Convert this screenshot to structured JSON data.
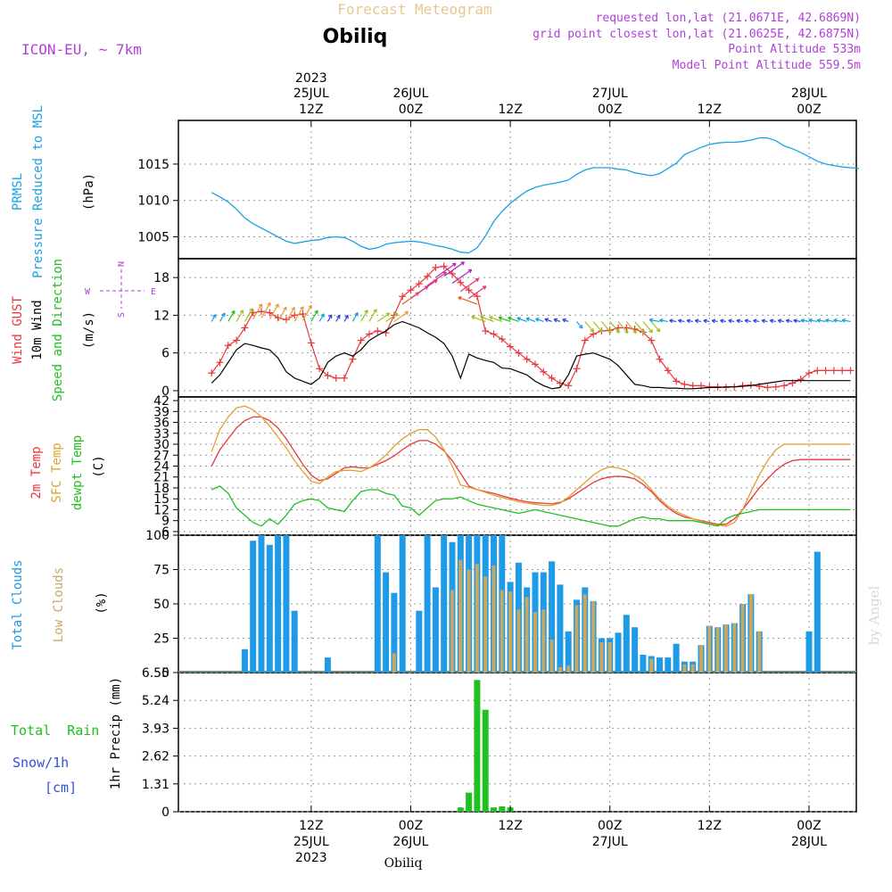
{
  "header": {
    "product": "Forecast Meteogram",
    "location": "Obiliq",
    "model": "ICON-EU, ~ 7km",
    "requested": "requested lon,lat (21.0671E, 42.6869N)",
    "gridpoint": "grid point closest lon,lat (21.0625E, 42.6875N)",
    "point_alt": "Point Altitude 533m",
    "model_alt": "Model Point Altitude 559.5m",
    "bottom_location": "Obiliq",
    "watermark": "by Angel"
  },
  "time_axis": {
    "top": [
      {
        "line1": "2023",
        "line2": "25JUL",
        "line3": "12Z"
      },
      {
        "line1": "",
        "line2": "26JUL",
        "line3": "00Z"
      },
      {
        "line1": "",
        "line2": "",
        "line3": "12Z"
      },
      {
        "line1": "",
        "line2": "27JUL",
        "line3": "00Z"
      },
      {
        "line1": "",
        "line2": "",
        "line3": "12Z"
      },
      {
        "line1": "",
        "line2": "28JUL",
        "line3": "00Z"
      }
    ],
    "bottom": [
      {
        "line1": "12Z",
        "line2": "25JUL",
        "line3": "2023"
      },
      {
        "line1": "00Z",
        "line2": "26JUL",
        "line3": ""
      },
      {
        "line1": "12Z",
        "line2": "",
        "line3": ""
      },
      {
        "line1": "00Z",
        "line2": "27JUL",
        "line3": ""
      },
      {
        "line1": "12Z",
        "line2": "",
        "line3": ""
      },
      {
        "line1": "00Z",
        "line2": "28JUL",
        "line3": ""
      }
    ],
    "hour_ticks": [
      12,
      24,
      36,
      48,
      60,
      72
    ]
  },
  "panel_labels": {
    "pressure": {
      "l1": "PRMSL",
      "l2": "Pressure Reduced to MSL",
      "unit": "(hPa)"
    },
    "wind": {
      "l1": "Wind GUST",
      "l2": "10m Wind",
      "l3": "Speed and Direction",
      "unit": "(m/s)",
      "compass_ns": "N",
      "compass_s": "S",
      "compass_w": "W",
      "compass_e": "E"
    },
    "temp": {
      "l1": "2m Temp",
      "l2": "SFC Temp",
      "l3": "dewpt Temp",
      "unit": "(C)"
    },
    "cloud": {
      "l1": "Total Clouds",
      "l2": "Low Clouds",
      "unit": "(%)"
    },
    "precip": {
      "l1": "Total  Rain",
      "l2": "Snow/1h",
      "l3": "[cm]",
      "unit": "1hr Precip (mm)"
    }
  },
  "colors": {
    "pressure": "#1aa0e6",
    "gust": "#e8383c",
    "wind": "#000000",
    "temp2m": "#e8383c",
    "sfc": "#e0a030",
    "dew": "#20c020",
    "total_cloud": "#1e9ae6",
    "low_cloud": "#c8a860",
    "rain": "#20c020",
    "label_purple": "#b040d8",
    "label_gold": "#e8b860"
  },
  "chart_data": [
    {
      "type": "line",
      "name": "pressure",
      "ylim": [
        1002,
        1021
      ],
      "yticks": [
        1005,
        1010,
        1015
      ],
      "x_hours": [
        0,
        1,
        2,
        3,
        4,
        5,
        6,
        7,
        8,
        9,
        10,
        11,
        12,
        13,
        14,
        15,
        16,
        17,
        18,
        19,
        20,
        21,
        22,
        23,
        24,
        25,
        26,
        27,
        28,
        29,
        30,
        31,
        32,
        33,
        34,
        35,
        36,
        37,
        38,
        39,
        40,
        41,
        42,
        43,
        44,
        45,
        46,
        47,
        48,
        49,
        50,
        51,
        52,
        53,
        54,
        55,
        56,
        57,
        58,
        59,
        60,
        61,
        62,
        63,
        64,
        65,
        66,
        67,
        68,
        69,
        70,
        71,
        72,
        73,
        74,
        75,
        76,
        77,
        78
      ],
      "series": [
        {
          "values": [
            1011.1,
            1010.5,
            1009.8,
            1008.8,
            1007.6,
            1006.8,
            1006.2,
            1005.6,
            1005.0,
            1004.4,
            1004.1,
            1004.3,
            1004.5,
            1004.6,
            1004.9,
            1005.0,
            1004.9,
            1004.4,
            1003.7,
            1003.3,
            1003.5,
            1004.0,
            1004.2,
            1004.3,
            1004.4,
            1004.3,
            1004.1,
            1003.8,
            1003.6,
            1003.3,
            1002.9,
            1002.8,
            1003.5,
            1005.1,
            1007.1,
            1008.5,
            1009.6,
            1010.5,
            1011.3,
            1011.8,
            1012.1,
            1012.3,
            1012.5,
            1012.8,
            1013.6,
            1014.2,
            1014.5,
            1014.5,
            1014.5,
            1014.3,
            1014.2,
            1013.8,
            1013.6,
            1013.4,
            1013.7,
            1014.4,
            1015.1,
            1016.3,
            1016.8,
            1017.3,
            1017.7,
            1017.9,
            1018.0,
            1018.0,
            1018.1,
            1018.3,
            1018.6,
            1018.6,
            1018.2,
            1017.5,
            1017.1,
            1016.6,
            1016.0,
            1015.4,
            1015.0,
            1014.8,
            1014.6,
            1014.5,
            1014.4
          ]
        }
      ]
    },
    {
      "type": "line",
      "name": "wind",
      "ylim": [
        -1,
        21
      ],
      "yticks": [
        0,
        6,
        12,
        18
      ],
      "x_hours": [
        0,
        1,
        2,
        3,
        4,
        5,
        6,
        7,
        8,
        9,
        10,
        11,
        12,
        13,
        14,
        15,
        16,
        17,
        18,
        19,
        20,
        21,
        22,
        23,
        24,
        25,
        26,
        27,
        28,
        29,
        30,
        31,
        32,
        33,
        34,
        35,
        36,
        37,
        38,
        39,
        40,
        41,
        42,
        43,
        44,
        45,
        46,
        47,
        48,
        49,
        50,
        51,
        52,
        53,
        54,
        55,
        56,
        57,
        58,
        59,
        60,
        61,
        62,
        63,
        64,
        65,
        66,
        67,
        68,
        69,
        70,
        71,
        72,
        73,
        74,
        75,
        76,
        77
      ],
      "series": [
        {
          "name": "Wind GUST",
          "values": [
            2.8,
            4.5,
            7.2,
            8.0,
            10.0,
            12.4,
            12.6,
            12.4,
            11.6,
            11.3,
            12.0,
            12.2,
            7.6,
            3.5,
            2.4,
            2.0,
            2.0,
            5.0,
            8.0,
            9.0,
            9.5,
            9.2,
            12.0,
            15.0,
            16.0,
            17.0,
            18.2,
            19.6,
            19.8,
            18.6,
            17.2,
            16.0,
            15.0,
            9.5,
            9.0,
            8.2,
            7.0,
            6.0,
            5.0,
            4.2,
            3.0,
            2.0,
            1.2,
            0.8,
            3.5,
            8.0,
            9.0,
            9.5,
            9.6,
            10.0,
            10.0,
            9.8,
            9.3,
            8.0,
            5.0,
            3.2,
            1.5,
            1.0,
            0.8,
            0.8,
            0.6,
            0.6,
            0.5,
            0.6,
            0.8,
            0.9,
            0.7,
            0.5,
            0.6,
            0.8,
            1.2,
            1.8,
            2.8,
            3.2,
            3.2,
            3.2,
            3.2,
            3.2
          ]
        },
        {
          "name": "10m Wind",
          "values": [
            1.2,
            2.5,
            4.5,
            6.5,
            7.5,
            7.2,
            6.8,
            6.5,
            5.2,
            3.0,
            2.0,
            1.5,
            1.0,
            2.0,
            4.5,
            5.5,
            6.0,
            5.5,
            6.5,
            8.0,
            8.8,
            9.5,
            10.5,
            11.0,
            10.5,
            10.0,
            9.2,
            8.5,
            7.5,
            5.5,
            2.0,
            5.8,
            5.2,
            4.8,
            4.5,
            3.6,
            3.5,
            3.0,
            2.5,
            1.5,
            0.8,
            0.3,
            0.5,
            2.5,
            5.5,
            5.8,
            6.0,
            5.5,
            5.0,
            4.0,
            2.5,
            1.0,
            0.8,
            0.5,
            0.5,
            0.4,
            0.4,
            0.3,
            0.3,
            0.4,
            0.5,
            0.5,
            0.6,
            0.6,
            0.7,
            0.8,
            1.0,
            1.2,
            1.4,
            1.6,
            1.6,
            1.6,
            1.6,
            1.6,
            1.6,
            1.6,
            1.6,
            1.6
          ]
        }
      ]
    },
    {
      "type": "line",
      "name": "temperature",
      "ylim": [
        5,
        43
      ],
      "yticks": [
        6,
        9,
        12,
        15,
        18,
        21,
        24,
        27,
        30,
        33,
        36,
        39,
        42
      ],
      "x_hours": [
        0,
        1,
        2,
        3,
        4,
        5,
        6,
        7,
        8,
        9,
        10,
        11,
        12,
        13,
        14,
        15,
        16,
        17,
        18,
        19,
        20,
        21,
        22,
        23,
        24,
        25,
        26,
        27,
        28,
        29,
        30,
        31,
        32,
        33,
        34,
        35,
        36,
        37,
        38,
        39,
        40,
        41,
        42,
        43,
        44,
        45,
        46,
        47,
        48,
        49,
        50,
        51,
        52,
        53,
        54,
        55,
        56,
        57,
        58,
        59,
        60,
        61,
        62,
        63,
        64,
        65,
        66,
        67,
        68,
        69,
        70,
        71,
        72,
        73,
        74,
        75,
        76,
        77
      ],
      "series": [
        {
          "name": "2m Temp",
          "values": [
            24.0,
            28.5,
            31.5,
            34.5,
            36.5,
            37.5,
            37.5,
            36.5,
            34.5,
            31.5,
            28.0,
            24.5,
            21.5,
            20.0,
            20.5,
            22.0,
            23.5,
            23.8,
            23.5,
            23.5,
            24.5,
            25.5,
            26.8,
            28.5,
            30.0,
            31.0,
            31.0,
            30.0,
            28.2,
            25.5,
            22.0,
            18.5,
            17.5,
            17.0,
            16.5,
            15.8,
            15.2,
            14.6,
            14.2,
            13.9,
            13.8,
            13.6,
            14.0,
            15.0,
            16.5,
            18.0,
            19.5,
            20.5,
            21.0,
            21.2,
            21.0,
            20.5,
            19.0,
            17.0,
            14.5,
            12.5,
            11.0,
            10.0,
            9.5,
            9.0,
            8.5,
            8.0,
            8.0,
            9.5,
            12.0,
            15.0,
            18.0,
            20.5,
            22.8,
            24.5,
            25.5,
            25.8,
            25.8,
            25.8,
            25.8,
            25.8,
            25.8,
            25.8
          ]
        },
        {
          "name": "SFC Temp",
          "values": [
            28.0,
            34.0,
            37.5,
            40.0,
            40.5,
            39.5,
            37.5,
            35.0,
            32.0,
            29.0,
            25.5,
            22.5,
            19.8,
            19.2,
            21.0,
            22.5,
            22.8,
            22.8,
            22.5,
            23.5,
            25.0,
            27.0,
            29.5,
            31.5,
            33.0,
            34.0,
            34.0,
            32.0,
            28.5,
            24.0,
            18.8,
            18.2,
            17.5,
            16.8,
            16.0,
            15.4,
            14.8,
            14.2,
            13.8,
            13.5,
            13.2,
            13.2,
            13.8,
            15.5,
            17.5,
            19.5,
            21.5,
            23.0,
            23.8,
            23.5,
            22.8,
            21.5,
            20.0,
            17.5,
            15.0,
            13.0,
            11.5,
            10.5,
            9.5,
            8.8,
            8.2,
            7.8,
            7.5,
            8.5,
            12.0,
            17.0,
            21.5,
            25.5,
            28.5,
            30.0,
            30.0,
            30.0,
            30.0,
            30.0,
            30.0,
            30.0,
            30.0,
            30.0
          ]
        },
        {
          "name": "dewpt Temp",
          "values": [
            17.5,
            18.5,
            16.5,
            12.5,
            10.5,
            8.5,
            7.5,
            9.5,
            8.0,
            10.5,
            13.5,
            14.5,
            15.0,
            14.5,
            12.5,
            12.0,
            11.5,
            14.5,
            17.0,
            17.5,
            17.5,
            16.5,
            16.0,
            13.0,
            12.5,
            10.5,
            12.5,
            14.5,
            15.0,
            15.0,
            15.5,
            14.5,
            13.5,
            13.0,
            12.5,
            12.0,
            11.5,
            11.0,
            11.5,
            12.0,
            11.5,
            11.0,
            10.5,
            10.0,
            9.5,
            9.0,
            8.5,
            8.0,
            7.5,
            7.5,
            8.5,
            9.5,
            10.0,
            9.5,
            9.5,
            9.0,
            9.0,
            9.0,
            9.0,
            8.5,
            8.0,
            7.5,
            9.5,
            10.5,
            11.0,
            11.5,
            12.0,
            12.0,
            12.0,
            12.0,
            12.0,
            12.0,
            12.0,
            12.0,
            12.0,
            12.0,
            12.0,
            12.0
          ]
        }
      ]
    },
    {
      "type": "bar",
      "name": "clouds",
      "ylim": [
        0,
        100
      ],
      "yticks": [
        0,
        25,
        50,
        75,
        100
      ],
      "x_hours": [
        4,
        5,
        6,
        7,
        8,
        9,
        10,
        11,
        12,
        13,
        14,
        20,
        21,
        22,
        23,
        25,
        26,
        27,
        28,
        29,
        30,
        31,
        32,
        33,
        34,
        35,
        36,
        37,
        38,
        39,
        40,
        41,
        42,
        43,
        44,
        45,
        46,
        47,
        48,
        49,
        50,
        51,
        52,
        53,
        54,
        55,
        56,
        57,
        58,
        59,
        60,
        61,
        62,
        63,
        64,
        65,
        66,
        67,
        68,
        69,
        70,
        71,
        72,
        73,
        74,
        75,
        76,
        77
      ],
      "series": [
        {
          "name": "Total Clouds",
          "values": [
            17,
            96,
            100,
            93,
            100,
            100,
            45,
            0,
            0,
            0,
            11,
            100,
            73,
            58,
            100,
            45,
            100,
            62,
            100,
            95,
            100,
            100,
            100,
            100,
            100,
            100,
            66,
            80,
            62,
            73,
            73,
            81,
            64,
            30,
            53,
            62,
            52,
            25,
            25,
            29,
            42,
            33,
            13,
            12,
            11,
            11,
            21,
            8,
            8,
            20,
            34,
            33,
            35,
            36,
            50,
            57,
            30,
            0,
            0,
            0,
            0,
            0,
            30,
            88,
            0,
            0,
            0,
            0
          ]
        },
        {
          "name": "Low Clouds",
          "values": [
            0,
            0,
            0,
            0,
            0,
            0,
            0,
            0,
            0,
            0,
            0,
            0,
            0,
            14,
            0,
            0,
            0,
            0,
            0,
            60,
            82,
            75,
            79,
            70,
            78,
            60,
            59,
            46,
            55,
            44,
            46,
            24,
            4,
            5,
            49,
            57,
            52,
            22,
            22,
            0,
            0,
            0,
            0,
            10,
            0,
            0,
            0,
            6,
            6,
            20,
            34,
            33,
            35,
            36,
            50,
            57,
            30,
            0,
            0,
            0,
            0,
            0,
            0,
            0,
            0,
            0,
            0,
            0
          ]
        }
      ]
    },
    {
      "type": "bar",
      "name": "precipitation",
      "ylim": [
        0,
        6.55
      ],
      "yticks": [
        0,
        1.31,
        2.62,
        3.93,
        5.24,
        6.55
      ],
      "x_hours": [
        30,
        31,
        32,
        33,
        34,
        35,
        36
      ],
      "series": [
        {
          "name": "Total Rain",
          "values": [
            0.2,
            0.9,
            6.2,
            4.8,
            0.2,
            0.25,
            0.2
          ]
        }
      ]
    }
  ]
}
